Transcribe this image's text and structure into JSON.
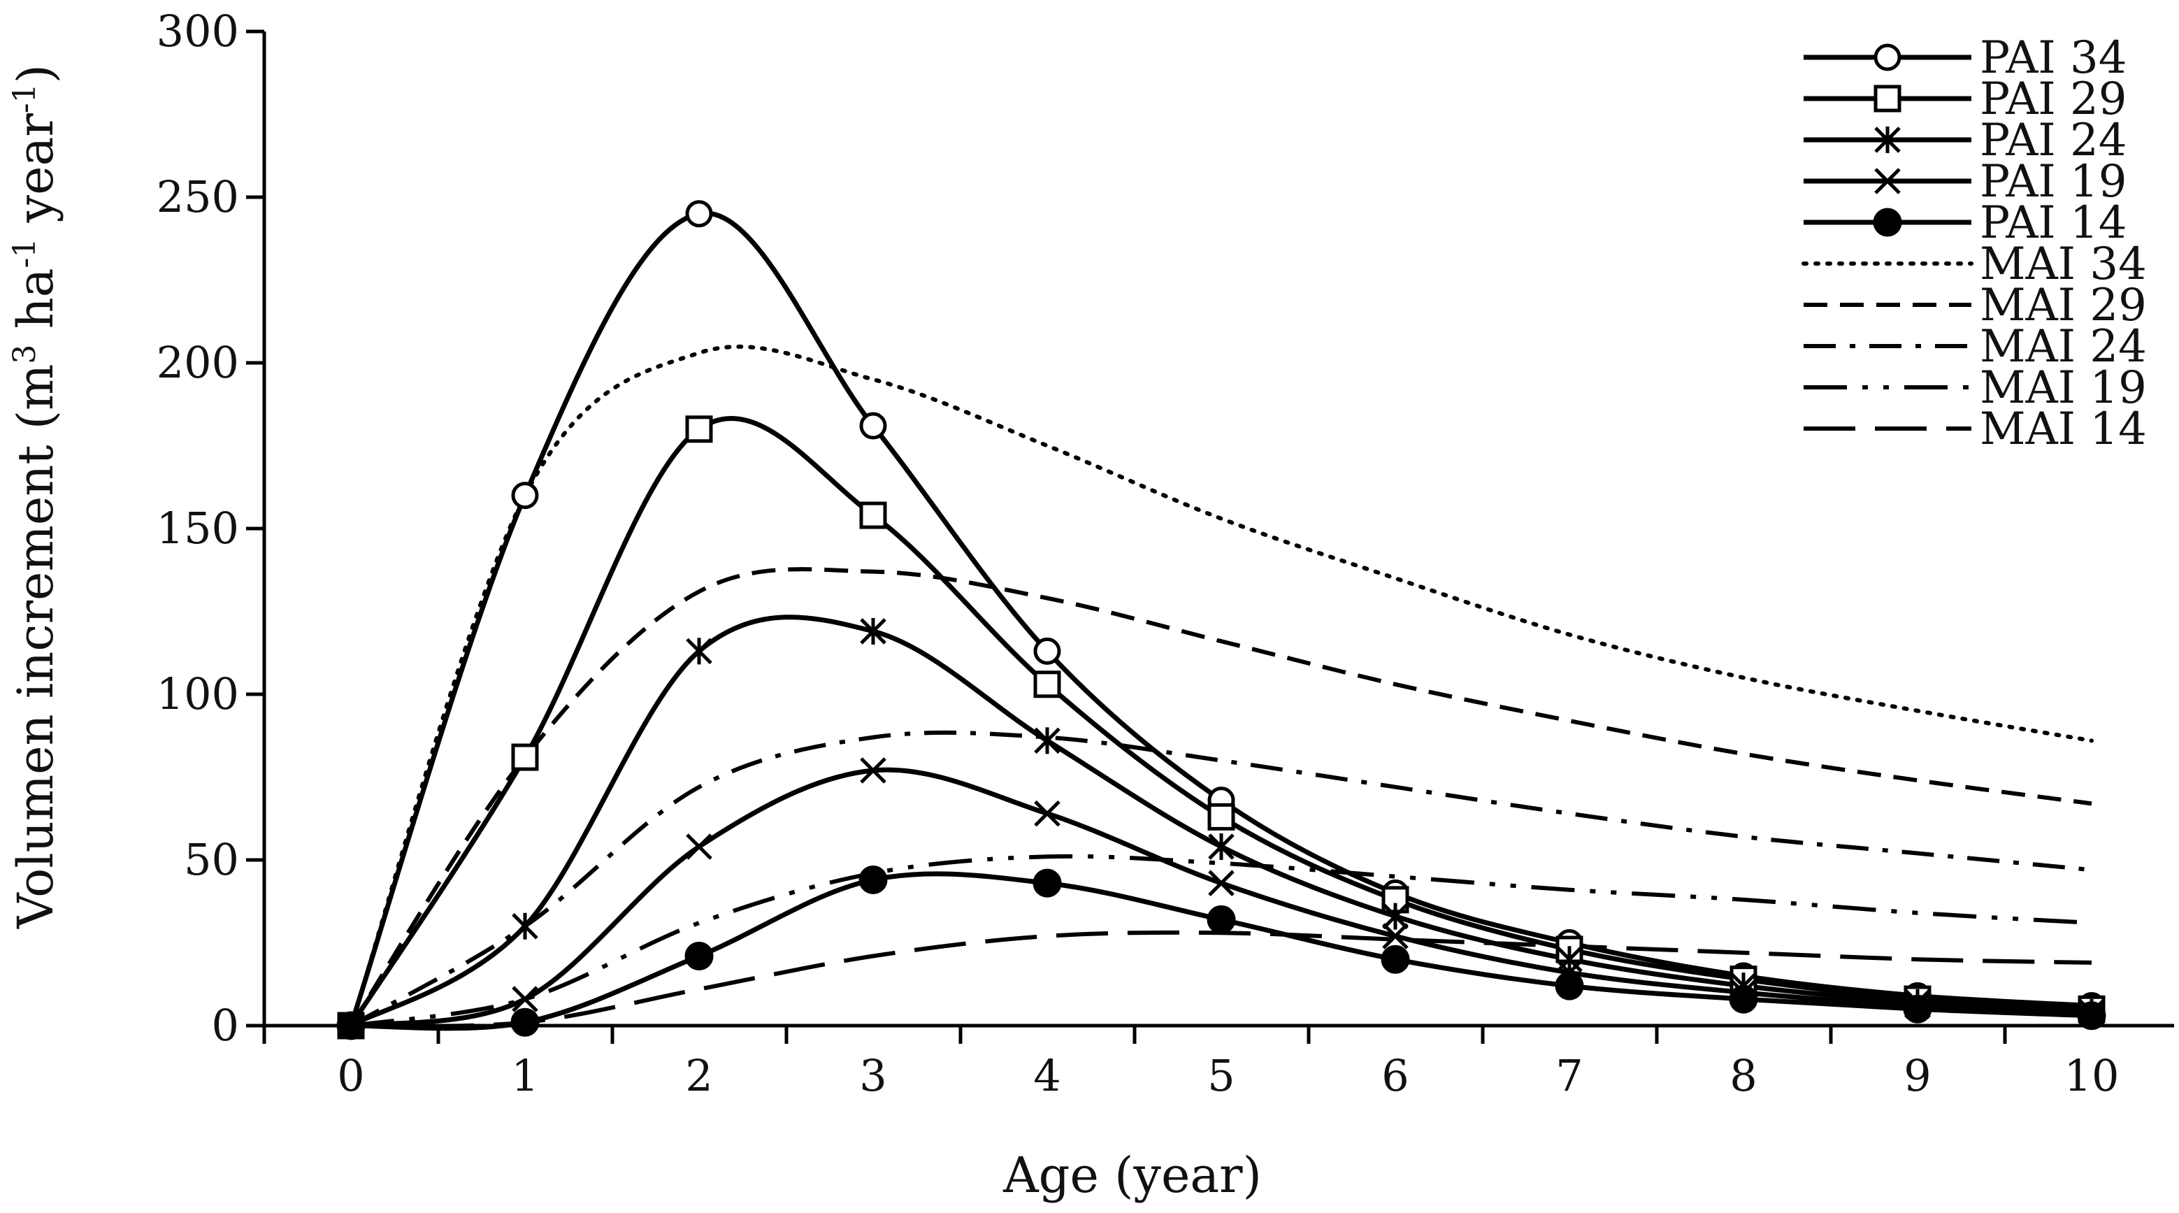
{
  "chart_data": {
    "type": "line",
    "title": "",
    "xlabel": "Age (year)",
    "ylabel": {
      "parts": [
        "Volumen increment (m",
        "3",
        " ha",
        "-1",
        " year",
        "-1",
        ")"
      ]
    },
    "xlim": [
      0,
      10
    ],
    "ylim": [
      0,
      300
    ],
    "x_ticks": [
      "0",
      "1",
      "2",
      "3",
      "4",
      "5",
      "6",
      "7",
      "8",
      "9",
      "10"
    ],
    "y_ticks": [
      "0",
      "50",
      "100",
      "150",
      "200",
      "250",
      "300"
    ],
    "grid": false,
    "legend_position": "top-right",
    "x": [
      0,
      1,
      2,
      3,
      4,
      5,
      6,
      7,
      8,
      9,
      10
    ],
    "series": [
      {
        "name": "PAI 34",
        "style": "solid",
        "marker": "open-circle",
        "values": [
          0,
          160,
          245,
          181,
          113,
          68,
          40,
          25,
          15,
          9,
          6
        ]
      },
      {
        "name": "PAI 29",
        "style": "solid",
        "marker": "open-square",
        "values": [
          0,
          81,
          180,
          154,
          103,
          63,
          38,
          23,
          14,
          8,
          5
        ]
      },
      {
        "name": "PAI 24",
        "style": "solid",
        "marker": "asterisk",
        "values": [
          0,
          30,
          113,
          119,
          86,
          54,
          33,
          20,
          12,
          7,
          4
        ]
      },
      {
        "name": "PAI 19",
        "style": "solid",
        "marker": "x",
        "values": [
          0,
          8,
          54,
          77,
          64,
          43,
          27,
          16,
          10,
          6,
          4
        ]
      },
      {
        "name": "PAI 14",
        "style": "solid",
        "marker": "filled-circle",
        "values": [
          0,
          1,
          21,
          44,
          43,
          32,
          20,
          12,
          8,
          5,
          3
        ]
      },
      {
        "name": "MAI 34",
        "style": "dotted",
        "marker": "none",
        "values": [
          0,
          160,
          203,
          195,
          175,
          153,
          135,
          118,
          105,
          95,
          86
        ]
      },
      {
        "name": "MAI 29",
        "style": "dashed",
        "marker": "none",
        "values": [
          0,
          81,
          131,
          137,
          129,
          116,
          103,
          92,
          82,
          74,
          67
        ]
      },
      {
        "name": "MAI 24",
        "style": "dash-dot",
        "marker": "none",
        "values": [
          0,
          30,
          72,
          87,
          87,
          80,
          72,
          64,
          57,
          52,
          47
        ]
      },
      {
        "name": "MAI 19",
        "style": "long-dash-dot-dot",
        "marker": "none",
        "values": [
          0,
          8,
          31,
          46,
          51,
          49,
          45,
          41,
          38,
          34,
          31
        ]
      },
      {
        "name": "MAI 14",
        "style": "long-dash",
        "marker": "none",
        "values": [
          0,
          1,
          11,
          21,
          27,
          28,
          26,
          24,
          22,
          20,
          19
        ]
      }
    ]
  }
}
